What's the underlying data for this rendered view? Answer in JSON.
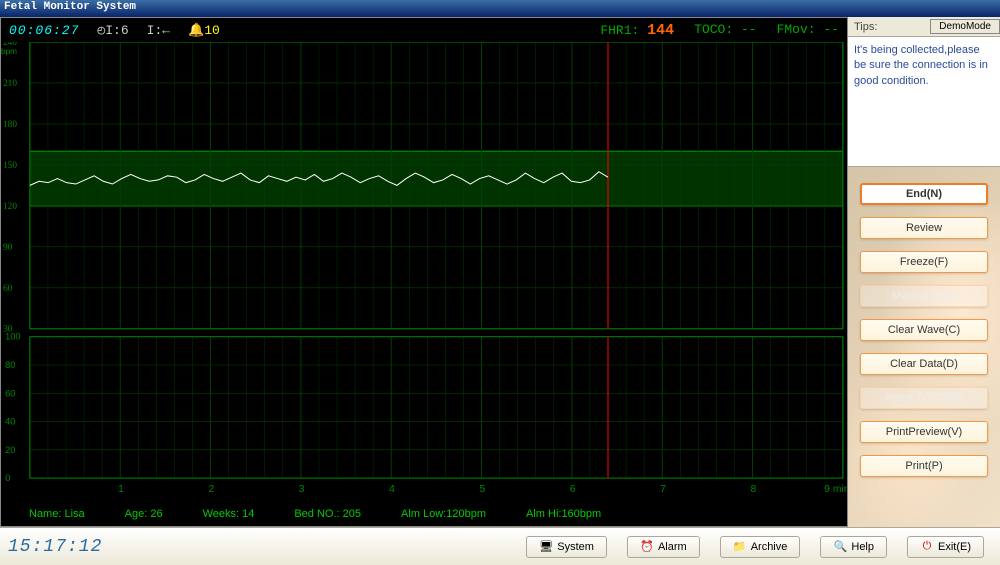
{
  "app": {
    "title": "Fetal Monitor System"
  },
  "indicator": {
    "elapsed": "00:06:27",
    "disk": "I:6",
    "usb": "I:←",
    "bell": "10",
    "fhr1_label": "FHR1:",
    "fhr1_value": "144",
    "toco_label": "TOCO: --",
    "fmov_label": "FMov: --"
  },
  "tips": {
    "label": "Tips:",
    "demo_mode": "DemoMode",
    "text": "    It's being collected,please be sure the connection is in good condition."
  },
  "actions": {
    "end": "End(N)",
    "review": "Review",
    "freeze": "Freeze(F)",
    "manual_mark": "Manual Mark",
    "clear_wave": "Clear Wave(C)",
    "clear_data": "Clear Data(D)",
    "reset_toco": "Reset TOCO(R)",
    "print_preview": "PrintPreview(V)",
    "print": "Print(P)"
  },
  "patient": {
    "name_label": "Name: Lisa",
    "age_label": "Age: 26",
    "weeks_label": "Weeks: 14",
    "bed_label": "Bed NO.: 205",
    "alm_low": "Alm Low:120bpm",
    "alm_hi": "Alm Hi:160bpm"
  },
  "status": {
    "clock": "15:17:12",
    "system": "System",
    "alarm": "Alarm",
    "archive": "Archive",
    "help": "Help",
    "exit": "Exit(E)"
  },
  "fhr_chart": {
    "type": "line",
    "ylim": [
      30,
      240
    ],
    "yticks": [
      30,
      60,
      90,
      120,
      150,
      180,
      210,
      240
    ],
    "safe_band": [
      120,
      160
    ],
    "band_color": "#003300",
    "band_border": "#008800",
    "grid_color": "#004400",
    "axis_color": "#008800",
    "text_color": "#008800",
    "bg_color": "#000000",
    "line_color": "#ffffff",
    "cursor_color": "#ff0000",
    "xmin": 0,
    "xmax": 9,
    "xticks": [
      1,
      2,
      3,
      4,
      5,
      6,
      7,
      8
    ],
    "x_cursor": 6.4,
    "x_unit": "min",
    "series": [
      135,
      138,
      137,
      140,
      137,
      136,
      139,
      142,
      138,
      136,
      140,
      143,
      140,
      138,
      139,
      142,
      141,
      137,
      139,
      143,
      140,
      138,
      141,
      144,
      139,
      137,
      142,
      140,
      138,
      141,
      139,
      143,
      138,
      140,
      144,
      141,
      137,
      140,
      142,
      138,
      135,
      140,
      144,
      141,
      137,
      139,
      143,
      140,
      136,
      140,
      142,
      139,
      136,
      139,
      144,
      140,
      137,
      141,
      144,
      138,
      137,
      139,
      145,
      141
    ]
  },
  "toco_chart": {
    "type": "line",
    "ylim": [
      0,
      100
    ],
    "yticks": [
      0,
      20,
      40,
      60,
      80,
      100
    ],
    "grid_color": "#004400",
    "axis_color": "#008800",
    "bg_color": "#000000",
    "text_color": "#008800"
  }
}
